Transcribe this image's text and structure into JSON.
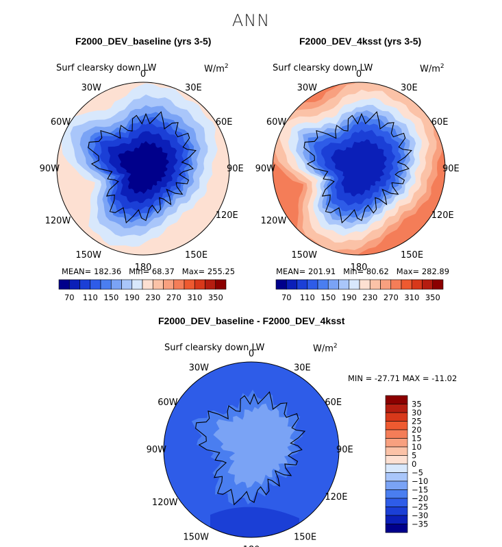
{
  "figure_title": "ANN",
  "panels": [
    {
      "title": "F2000_DEV_baseline (yrs 3-5)",
      "variable": "Surf clearsky down LW",
      "units": "W/m",
      "units_sup": "2",
      "stats": {
        "mean": "MEAN= 182.36",
        "min": "Min=  68.37",
        "max": "Max= 255.25"
      }
    },
    {
      "title": "F2000_DEV_4ksst (yrs 3-5)",
      "variable": "Surf clearsky down LW",
      "units": "W/m",
      "units_sup": "2",
      "stats": {
        "mean": "MEAN= 201.91",
        "min": "Min=  80.62",
        "max": "Max= 282.89"
      }
    },
    {
      "title": "F2000_DEV_baseline - F2000_DEV_4ksst",
      "variable": "Surf clearsky down LW",
      "units": "W/m",
      "units_sup": "2",
      "stats": {
        "minmax": "MIN = -27.71  MAX = -11.02"
      }
    }
  ],
  "longitude_labels": [
    "0",
    "30E",
    "60E",
    "90E",
    "120E",
    "150E",
    "180",
    "150W",
    "120W",
    "90W",
    "60W",
    "30W"
  ],
  "colorbar_abs": {
    "orientation": "horizontal",
    "tick_labels": [
      "70",
      "110",
      "150",
      "190",
      "230",
      "270",
      "310",
      "350"
    ],
    "colors": [
      "#00008b",
      "#0b1fb8",
      "#1b3fd6",
      "#2e5ce8",
      "#4a7ef0",
      "#7aa3f5",
      "#a9c6fa",
      "#d8e8fc",
      "#fde0d2",
      "#fbc2a7",
      "#f8a07f",
      "#f47d58",
      "#ee5a30",
      "#d8381a",
      "#b51d10",
      "#8b0000"
    ]
  },
  "colorbar_diff": {
    "orientation": "vertical",
    "tick_labels": [
      "35",
      "30",
      "25",
      "20",
      "15",
      "10",
      "5",
      "0",
      "−5",
      "−10",
      "−15",
      "−20",
      "−25",
      "−30",
      "−35"
    ],
    "colors": [
      "#8b0000",
      "#b51d10",
      "#d8381a",
      "#ee5a30",
      "#f47d58",
      "#f8a07f",
      "#fbc2a7",
      "#fde0d2",
      "#d8e8fc",
      "#a9c6fa",
      "#7aa3f5",
      "#4a7ef0",
      "#2e5ce8",
      "#1b3fd6",
      "#0b1fb8",
      "#00008b"
    ]
  },
  "map_levels": {
    "baseline": [
      "#fde0d2",
      "#d8e8fc",
      "#a9c6fa",
      "#7aa3f5",
      "#4a7ef0",
      "#2e5ce8",
      "#1b3fd6",
      "#0b1fb8",
      "#00008b"
    ],
    "ksst": [
      "#f47d58",
      "#f8a07f",
      "#fbc2a7",
      "#fde0d2",
      "#d8e8fc",
      "#a9c6fa",
      "#7aa3f5",
      "#4a7ef0",
      "#2e5ce8",
      "#1b3fd6",
      "#0b1fb8"
    ],
    "diff": [
      "#2e5ce8",
      "#4a7ef0",
      "#7aa3f5"
    ]
  }
}
